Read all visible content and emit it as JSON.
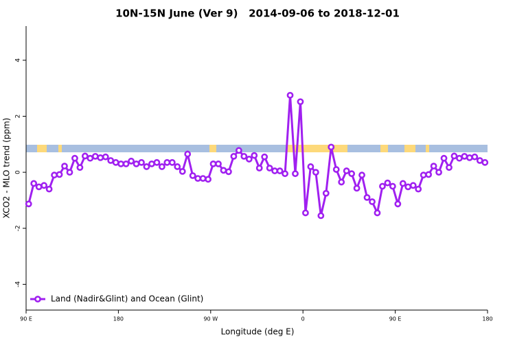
{
  "chart_data": {
    "type": "line",
    "title": "10N-15N June (Ver 9)   2014-09-06 to 2018-12-01",
    "xlabel": "Longitude (deg E)",
    "ylabel": "XCO2 - MLO trend (ppm)",
    "xlim": [
      90,
      540
    ],
    "xticks": [
      {
        "value": 90,
        "label": "90 E"
      },
      {
        "value": 180,
        "label": "180"
      },
      {
        "value": 270,
        "label": "90 W"
      },
      {
        "value": 360,
        "label": "0"
      },
      {
        "value": 450,
        "label": "90 E"
      },
      {
        "value": 540,
        "label": "180"
      }
    ],
    "ylim": [
      -4.92,
      5.22
    ],
    "yticks": [
      -4,
      -2,
      0,
      2,
      4
    ],
    "legend": "bottomleft",
    "x": [
      92.5,
      97.5,
      102.5,
      107.5,
      112.5,
      117.5,
      122.5,
      127.5,
      132.5,
      137.5,
      142.5,
      147.5,
      152.5,
      157.5,
      162.5,
      167.5,
      172.5,
      177.5,
      182.5,
      187.5,
      192.5,
      197.5,
      202.5,
      207.5,
      212.5,
      217.5,
      222.5,
      227.5,
      232.5,
      237.5,
      242.5,
      247.5,
      252.5,
      257.5,
      262.5,
      267.5,
      272.5,
      277.5,
      282.5,
      287.5,
      292.5,
      297.5,
      302.5,
      307.5,
      312.5,
      317.5,
      322.5,
      327.5,
      332.5,
      337.5,
      342.5,
      347.5,
      352.5,
      357.5,
      362.5,
      367.5,
      372.5,
      377.5,
      382.5,
      387.5,
      392.5,
      397.5,
      402.5,
      407.5,
      412.5,
      417.5,
      422.5,
      427.5,
      432.5,
      437.5,
      442.5,
      447.5,
      452.5,
      457.5,
      462.5,
      467.5,
      472.5,
      477.5,
      482.5,
      487.5,
      492.5,
      497.5,
      502.5,
      507.5,
      512.5,
      517.5,
      522.5,
      527.5,
      532.5,
      537.5
    ],
    "series": [
      {
        "name": "Land (Nadir&Glint) and Ocean (Glint)",
        "color": "#a020f0",
        "values": [
          -1.13,
          -0.4,
          -0.52,
          -0.47,
          -0.6,
          -0.1,
          -0.08,
          0.22,
          0.0,
          0.5,
          0.17,
          0.58,
          0.5,
          0.57,
          0.52,
          0.55,
          0.42,
          0.35,
          0.3,
          0.3,
          0.4,
          0.3,
          0.35,
          0.2,
          0.3,
          0.35,
          0.2,
          0.35,
          0.35,
          0.2,
          0.03,
          0.65,
          -0.12,
          -0.22,
          -0.22,
          -0.25,
          0.3,
          0.3,
          0.07,
          0.02,
          0.57,
          0.78,
          0.57,
          0.47,
          0.6,
          0.15,
          0.55,
          0.15,
          0.05,
          0.05,
          -0.05,
          2.75,
          -0.05,
          2.52,
          -1.45,
          0.2,
          0.0,
          -1.55,
          -0.75,
          0.9,
          0.1,
          -0.35,
          0.05,
          -0.05,
          -0.57,
          -0.1,
          -0.9,
          -1.05,
          -1.45,
          -0.5,
          -0.38,
          -0.5,
          -1.13,
          -0.4,
          -0.52,
          -0.47,
          -0.6,
          -0.1,
          -0.08,
          0.22,
          0.0,
          0.5,
          0.17,
          0.58,
          0.5,
          0.57,
          0.52,
          0.55,
          0.42,
          0.35
        ]
      }
    ]
  }
}
